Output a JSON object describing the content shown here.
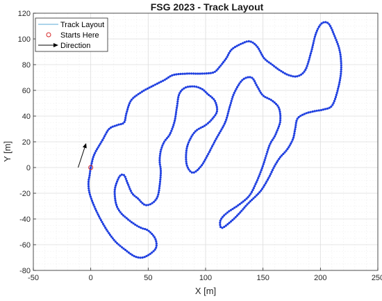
{
  "chart_data": {
    "type": "scatter",
    "title": "FSG 2023 - Track Layout",
    "xlabel": "X [m]",
    "ylabel": "Y [m]",
    "xlim": [
      -50,
      250
    ],
    "ylim": [
      -80,
      120
    ],
    "xticks": [
      -50,
      0,
      50,
      100,
      150,
      200,
      250
    ],
    "yticks": [
      -80,
      -60,
      -40,
      -20,
      0,
      20,
      40,
      60,
      80,
      100,
      120
    ],
    "grid": true,
    "legend_position": "top-left",
    "legend": [
      {
        "label": "Track Layout",
        "style": "line",
        "color": "#5aa9d6"
      },
      {
        "label": "Starts Here",
        "style": "circle",
        "color": "#d62728"
      },
      {
        "label": "Direction",
        "style": "arrow",
        "color": "#000000"
      }
    ],
    "colors": {
      "track": "#1f3fe0",
      "start": "#d62728",
      "arrow": "#000000"
    },
    "start_point": {
      "x": 0,
      "y": 0
    },
    "direction_arrow": {
      "from": {
        "x": -11,
        "y": 0
      },
      "to": {
        "x": -4,
        "y": 19
      }
    },
    "track": [
      [
        0,
        0
      ],
      [
        3,
        10
      ],
      [
        10,
        21
      ],
      [
        16,
        30
      ],
      [
        23,
        33
      ],
      [
        29,
        35
      ],
      [
        31,
        42
      ],
      [
        35,
        52
      ],
      [
        43,
        58
      ],
      [
        53,
        63
      ],
      [
        64,
        68
      ],
      [
        72,
        72
      ],
      [
        84,
        73
      ],
      [
        97,
        73
      ],
      [
        107,
        74
      ],
      [
        112,
        78
      ],
      [
        118,
        85
      ],
      [
        123,
        92
      ],
      [
        133,
        97
      ],
      [
        139,
        98
      ],
      [
        145,
        94
      ],
      [
        151,
        85
      ],
      [
        158,
        80
      ],
      [
        164,
        76
      ],
      [
        172,
        72
      ],
      [
        180,
        71
      ],
      [
        187,
        76
      ],
      [
        192,
        90
      ],
      [
        196,
        104
      ],
      [
        201,
        112
      ],
      [
        207,
        112
      ],
      [
        212,
        103
      ],
      [
        217,
        90
      ],
      [
        218,
        75
      ],
      [
        215,
        60
      ],
      [
        210,
        48
      ],
      [
        202,
        45
      ],
      [
        196,
        44
      ],
      [
        187,
        42
      ],
      [
        180,
        38
      ],
      [
        178,
        30
      ],
      [
        176,
        22
      ],
      [
        171,
        14
      ],
      [
        165,
        8
      ],
      [
        160,
        1
      ],
      [
        155,
        -8
      ],
      [
        149,
        -17
      ],
      [
        144,
        -22
      ],
      [
        137,
        -28
      ],
      [
        130,
        -35
      ],
      [
        122,
        -42
      ],
      [
        114,
        -47
      ],
      [
        113,
        -41
      ],
      [
        119,
        -35
      ],
      [
        129,
        -29
      ],
      [
        138,
        -22
      ],
      [
        144,
        -12
      ],
      [
        149,
        -1
      ],
      [
        153,
        10
      ],
      [
        156,
        18
      ],
      [
        160,
        24
      ],
      [
        162,
        28
      ],
      [
        165,
        36
      ],
      [
        164,
        46
      ],
      [
        158,
        52
      ],
      [
        150,
        56
      ],
      [
        145,
        63
      ],
      [
        140,
        70
      ],
      [
        132,
        68
      ],
      [
        125,
        58
      ],
      [
        121,
        47
      ],
      [
        117,
        35
      ],
      [
        109,
        22
      ],
      [
        102,
        10
      ],
      [
        96,
        1
      ],
      [
        89,
        -4
      ],
      [
        84,
        1
      ],
      [
        83,
        10
      ],
      [
        85,
        19
      ],
      [
        91,
        28
      ],
      [
        100,
        33
      ],
      [
        106,
        38
      ],
      [
        110,
        44
      ],
      [
        108,
        52
      ],
      [
        102,
        57
      ],
      [
        97,
        61
      ],
      [
        90,
        63
      ],
      [
        82,
        62
      ],
      [
        77,
        57
      ],
      [
        75,
        47
      ],
      [
        73,
        36
      ],
      [
        69,
        26
      ],
      [
        64,
        20
      ],
      [
        61,
        13
      ],
      [
        60,
        5
      ],
      [
        61,
        -3
      ],
      [
        60,
        -14
      ],
      [
        58,
        -23
      ],
      [
        53,
        -28
      ],
      [
        47,
        -29
      ],
      [
        41,
        -24
      ],
      [
        36,
        -20
      ],
      [
        32,
        -12
      ],
      [
        29,
        -6
      ],
      [
        25,
        -7
      ],
      [
        21,
        -17
      ],
      [
        22,
        -28
      ],
      [
        26,
        -35
      ],
      [
        32,
        -40
      ],
      [
        38,
        -44
      ],
      [
        44,
        -47
      ],
      [
        50,
        -49
      ],
      [
        56,
        -55
      ],
      [
        57,
        -62
      ],
      [
        52,
        -67
      ],
      [
        45,
        -70
      ],
      [
        38,
        -69
      ],
      [
        30,
        -64
      ],
      [
        22,
        -58
      ],
      [
        15,
        -50
      ],
      [
        9,
        -41
      ],
      [
        3,
        -30
      ],
      [
        -1,
        -20
      ],
      [
        -2,
        -12
      ],
      [
        -1,
        -6
      ]
    ]
  }
}
